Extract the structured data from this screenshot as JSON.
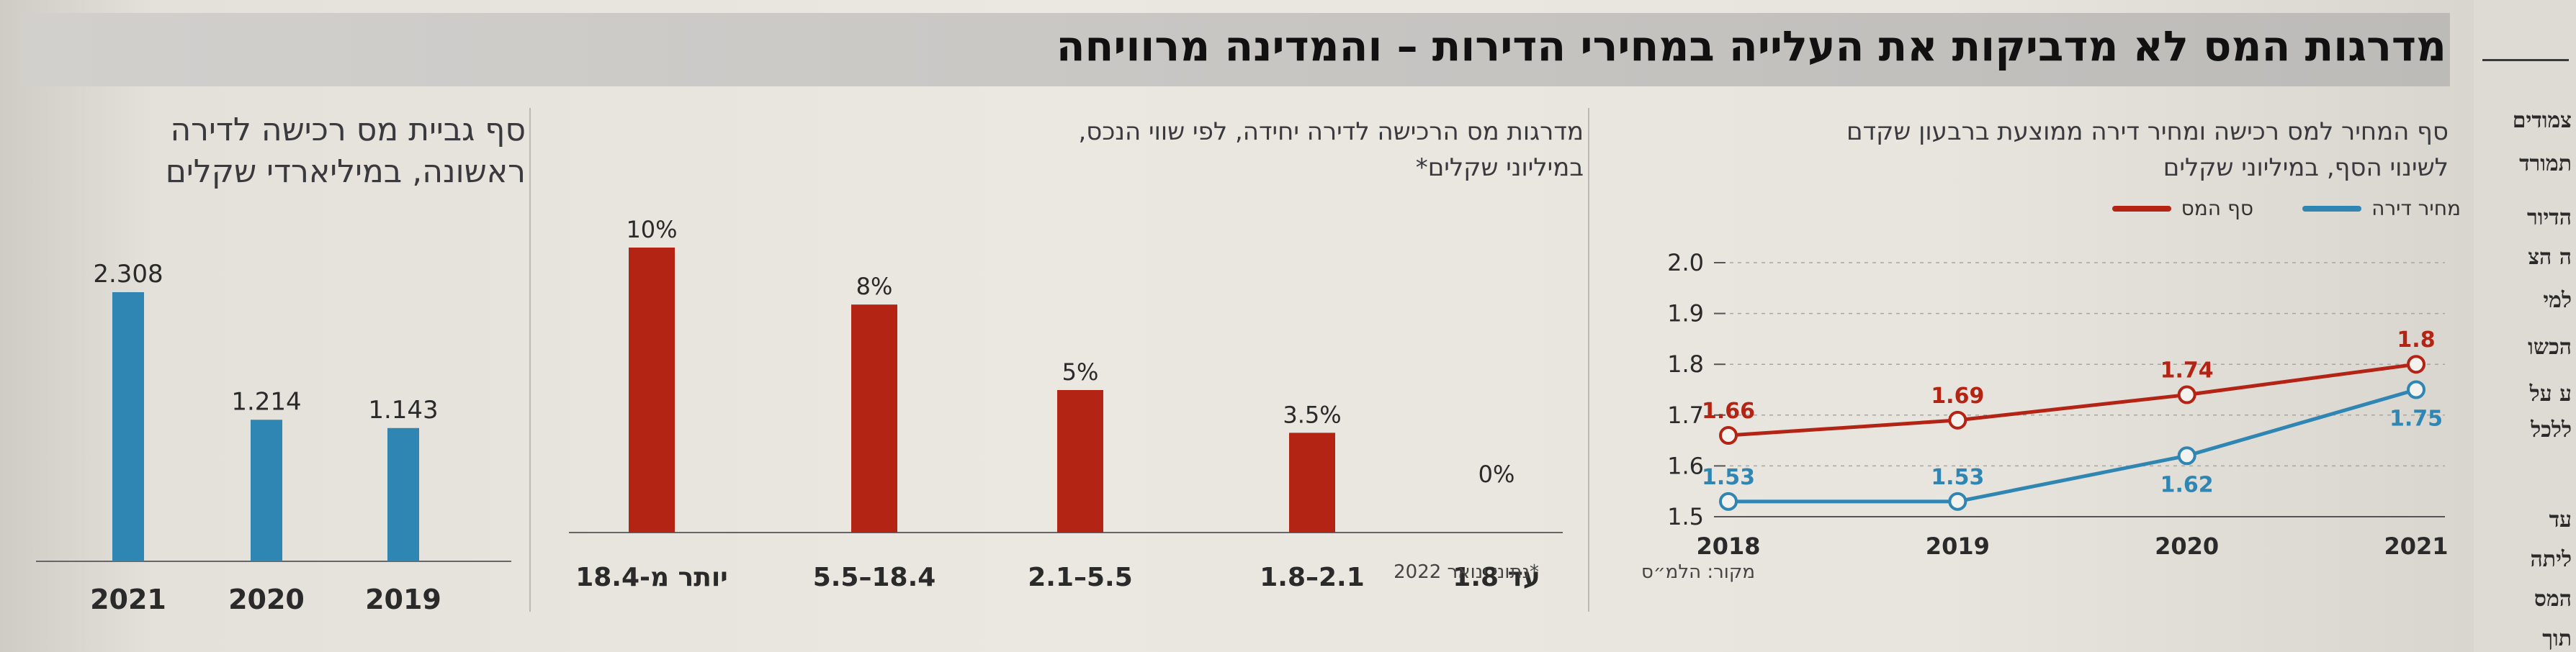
{
  "headline": "מדרגות המס לא מדביקות את העלייה במחירי הדירות – והמדינה מרוויחה",
  "sidebar_fragments": [
    "צמודים",
    "תמורד",
    "הדיור",
    "ה הצ",
    "למי",
    "הכשו",
    "ע על",
    "ללכל",
    "עד",
    "ליתה",
    "המס",
    "תוך"
  ],
  "source": "מקור: הלמ״ס",
  "footnote": "*נתוני ינואר 2022",
  "colors": {
    "red": "#b42414",
    "blue": "#2f86b2"
  },
  "line_panel": {
    "title_lines": [
      "סף המחיר למס רכישה ומחיר דירה ממוצעת ברבעון שקדם",
      "לשינוי הסף, במיליוני שקלים"
    ],
    "legend": {
      "tax": "סף המס",
      "price": "מחיר דירה"
    },
    "y_ticks": [
      "2.0",
      "1.9",
      "1.8",
      "1.7",
      "1.6",
      "1.5"
    ],
    "x_ticks": [
      "2018",
      "2019",
      "2020",
      "2021"
    ],
    "tax_labels": [
      "1.66",
      "1.69",
      "1.74",
      "1.8"
    ],
    "price_labels": [
      "1.53",
      "1.53",
      "1.62",
      "1.75"
    ]
  },
  "bar_rates_panel": {
    "title_lines": [
      "מדרגות מס הרכישה לדירה יחידה, לפי שווי הנכס,",
      "במיליוני שקלים*"
    ],
    "categories": [
      "עד 1.8",
      "2.1–1.8",
      "5.5–2.1",
      "18.4–5.5",
      "יותר מ-18.4"
    ],
    "labels": [
      "0%",
      "3.5%",
      "5%",
      "8%",
      "10%"
    ]
  },
  "bar_revenue_panel": {
    "title_lines": [
      "סף גביית מס רכישה לדירה",
      "ראשונה, במיליארדי שקלים"
    ],
    "categories": [
      "2019",
      "2020",
      "2021"
    ],
    "labels": [
      "1.143",
      "1.214",
      "2.308"
    ]
  },
  "chart_data": [
    {
      "type": "line",
      "title": "סף המחיר למס רכישה ומחיר דירה ממוצעת ברבעון שקדם לשינוי הסף, במיליוני שקלים",
      "x": [
        2018,
        2019,
        2020,
        2021
      ],
      "series": [
        {
          "name": "סף המס",
          "values": [
            1.66,
            1.69,
            1.74,
            1.8
          ],
          "color": "#b42414"
        },
        {
          "name": "מחיר דירה",
          "values": [
            1.53,
            1.53,
            1.62,
            1.75
          ],
          "color": "#2f86b2"
        }
      ],
      "ylim": [
        1.5,
        2.0
      ],
      "legend": "top-right"
    },
    {
      "type": "bar",
      "title": "מדרגות מס הרכישה לדירה יחידה, לפי שווי הנכס, במיליוני שקלים*",
      "categories": [
        "עד 1.8",
        "2.1–1.8",
        "5.5–2.1",
        "18.4–5.5",
        "יותר מ-18.4"
      ],
      "values": [
        0,
        3.5,
        5,
        8,
        10
      ],
      "unit": "%",
      "color": "#b42414"
    },
    {
      "type": "bar",
      "title": "סף גביית מס רכישה לדירה ראשונה, במיליארדי שקלים",
      "categories": [
        "2019",
        "2020",
        "2021"
      ],
      "values": [
        1.143,
        1.214,
        2.308
      ],
      "color": "#2f86b2"
    }
  ]
}
